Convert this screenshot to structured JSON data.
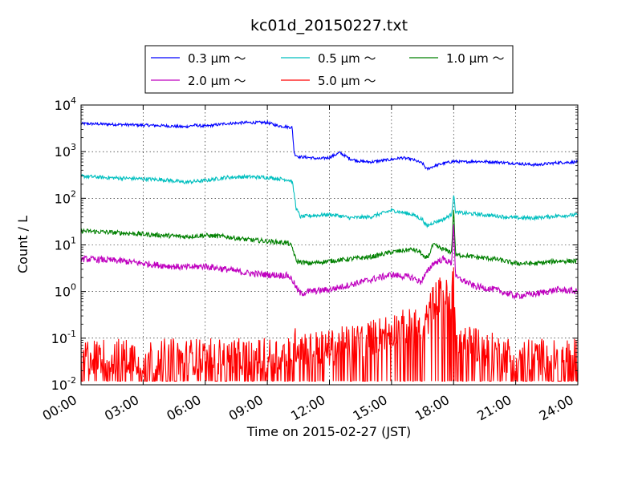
{
  "chart_data": {
    "type": "line",
    "title": "kc01d_20150227.txt",
    "xlabel": "Time on 2015-02-27 (JST)",
    "ylabel": "Count / L",
    "yscale": "log",
    "ylim": [
      0.01,
      10000
    ],
    "xlim_hours": [
      0,
      24
    ],
    "x_ticks": [
      "00:00",
      "03:00",
      "06:00",
      "09:00",
      "12:00",
      "15:00",
      "18:00",
      "21:00",
      "24:00"
    ],
    "y_ticks": [
      {
        "value": 0.01,
        "base": "10",
        "exp": "-2"
      },
      {
        "value": 0.1,
        "base": "10",
        "exp": "-1"
      },
      {
        "value": 1,
        "base": "10",
        "exp": "0"
      },
      {
        "value": 10,
        "base": "10",
        "exp": "1"
      },
      {
        "value": 100,
        "base": "10",
        "exp": "2"
      },
      {
        "value": 1000,
        "base": "10",
        "exp": "3"
      },
      {
        "value": 10000,
        "base": "10",
        "exp": "4"
      }
    ],
    "grid": true,
    "legend_position": "top-center",
    "legend_columns": 3,
    "series": [
      {
        "name": "0.3 μm ～",
        "color": "#0000ff",
        "noise": 0.03,
        "points": [
          [
            0,
            4000
          ],
          [
            1,
            3900
          ],
          [
            2,
            3800
          ],
          [
            3,
            3700
          ],
          [
            4,
            3600
          ],
          [
            5,
            3400
          ],
          [
            5.5,
            3700
          ],
          [
            6,
            3500
          ],
          [
            7,
            4000
          ],
          [
            8,
            4200
          ],
          [
            9,
            4200
          ],
          [
            9.5,
            3600
          ],
          [
            10.2,
            3300
          ],
          [
            10.3,
            900
          ],
          [
            10.5,
            780
          ],
          [
            11,
            750
          ],
          [
            11.5,
            700
          ],
          [
            12,
            750
          ],
          [
            12.5,
            950
          ],
          [
            13,
            700
          ],
          [
            13.5,
            620
          ],
          [
            14,
            600
          ],
          [
            15,
            680
          ],
          [
            15.5,
            740
          ],
          [
            16,
            680
          ],
          [
            16.5,
            560
          ],
          [
            16.7,
            420
          ],
          [
            17,
            480
          ],
          [
            17.5,
            560
          ],
          [
            18,
            620
          ],
          [
            18.5,
            600
          ],
          [
            19,
            620
          ],
          [
            20,
            600
          ],
          [
            21,
            560
          ],
          [
            22,
            520
          ],
          [
            23,
            580
          ],
          [
            24,
            600
          ]
        ]
      },
      {
        "name": "0.5 μm ～",
        "color": "#00bfbf",
        "noise": 0.04,
        "points": [
          [
            0,
            300
          ],
          [
            1,
            280
          ],
          [
            2,
            270
          ],
          [
            3,
            260
          ],
          [
            4,
            250
          ],
          [
            5,
            220
          ],
          [
            6,
            240
          ],
          [
            7,
            280
          ],
          [
            8,
            290
          ],
          [
            9,
            280
          ],
          [
            10,
            250
          ],
          [
            10.2,
            230
          ],
          [
            10.4,
            60
          ],
          [
            10.6,
            40
          ],
          [
            11,
            42
          ],
          [
            12,
            45
          ],
          [
            12.5,
            42
          ],
          [
            13,
            38
          ],
          [
            14,
            40
          ],
          [
            15,
            55
          ],
          [
            15.5,
            50
          ],
          [
            16,
            45
          ],
          [
            16.5,
            35
          ],
          [
            16.7,
            25
          ],
          [
            17,
            30
          ],
          [
            17.5,
            35
          ],
          [
            17.9,
            45
          ],
          [
            18,
            120
          ],
          [
            18.1,
            50
          ],
          [
            18.5,
            48
          ],
          [
            19,
            46
          ],
          [
            20,
            42
          ],
          [
            21,
            38
          ],
          [
            22,
            38
          ],
          [
            23,
            42
          ],
          [
            24,
            44
          ]
        ]
      },
      {
        "name": "1.0 μm ～",
        "color": "#008000",
        "noise": 0.05,
        "points": [
          [
            0,
            20
          ],
          [
            1,
            19
          ],
          [
            2,
            18
          ],
          [
            3,
            17
          ],
          [
            4,
            16
          ],
          [
            5,
            15
          ],
          [
            6,
            16
          ],
          [
            7,
            15
          ],
          [
            8,
            13
          ],
          [
            9,
            12
          ],
          [
            10,
            11
          ],
          [
            10.2,
            9
          ],
          [
            10.4,
            4.5
          ],
          [
            11,
            4
          ],
          [
            12,
            4.5
          ],
          [
            13,
            5
          ],
          [
            14,
            5.5
          ],
          [
            15,
            7
          ],
          [
            16,
            8
          ],
          [
            16.4,
            7
          ],
          [
            16.6,
            5
          ],
          [
            16.8,
            6
          ],
          [
            17,
            10
          ],
          [
            17.5,
            8
          ],
          [
            17.9,
            7
          ],
          [
            18,
            60
          ],
          [
            18.1,
            6
          ],
          [
            18.5,
            6
          ],
          [
            19,
            5.5
          ],
          [
            20,
            5
          ],
          [
            21,
            4
          ],
          [
            22,
            4
          ],
          [
            23,
            4.5
          ],
          [
            24,
            4.5
          ]
        ]
      },
      {
        "name": "2.0 μm ～",
        "color": "#bf00bf",
        "noise": 0.07,
        "points": [
          [
            0,
            5
          ],
          [
            1,
            4.8
          ],
          [
            2,
            4.5
          ],
          [
            3,
            4
          ],
          [
            4,
            3.6
          ],
          [
            5,
            3.3
          ],
          [
            6,
            3.5
          ],
          [
            7,
            3
          ],
          [
            8,
            2.5
          ],
          [
            9,
            2.3
          ],
          [
            10,
            2.2
          ],
          [
            10.2,
            1.8
          ],
          [
            10.4,
            1.2
          ],
          [
            10.6,
            0.9
          ],
          [
            11,
            1.0
          ],
          [
            12,
            1.1
          ],
          [
            13,
            1.4
          ],
          [
            14,
            1.8
          ],
          [
            15,
            2.3
          ],
          [
            16,
            2.0
          ],
          [
            16.4,
            1.6
          ],
          [
            16.7,
            2.5
          ],
          [
            17,
            4
          ],
          [
            17.5,
            5
          ],
          [
            17.9,
            4
          ],
          [
            18,
            30
          ],
          [
            18.1,
            2.0
          ],
          [
            18.5,
            1.7
          ],
          [
            19,
            1.3
          ],
          [
            20,
            1.1
          ],
          [
            21,
            0.8
          ],
          [
            22,
            0.9
          ],
          [
            23,
            1.1
          ],
          [
            24,
            1.0
          ]
        ]
      },
      {
        "name": "5.0 μm ～",
        "color": "#ff0000",
        "noise": 0.4,
        "floor": 0.012,
        "points": [
          [
            0,
            0.04
          ],
          [
            2,
            0.04
          ],
          [
            4,
            0.04
          ],
          [
            6,
            0.04
          ],
          [
            8,
            0.04
          ],
          [
            9,
            0.04
          ],
          [
            10,
            0.05
          ],
          [
            10.5,
            0.08
          ],
          [
            11,
            0.06
          ],
          [
            12,
            0.06
          ],
          [
            13,
            0.08
          ],
          [
            14,
            0.1
          ],
          [
            15,
            0.15
          ],
          [
            16,
            0.18
          ],
          [
            16.5,
            0.15
          ],
          [
            16.8,
            0.3
          ],
          [
            17,
            0.6
          ],
          [
            17.5,
            1.0
          ],
          [
            17.9,
            0.5
          ],
          [
            18,
            5
          ],
          [
            18.1,
            0.1
          ],
          [
            18.5,
            0.1
          ],
          [
            19,
            0.08
          ],
          [
            20,
            0.05
          ],
          [
            21,
            0.04
          ],
          [
            22,
            0.04
          ],
          [
            23,
            0.04
          ],
          [
            24,
            0.04
          ]
        ]
      }
    ]
  }
}
